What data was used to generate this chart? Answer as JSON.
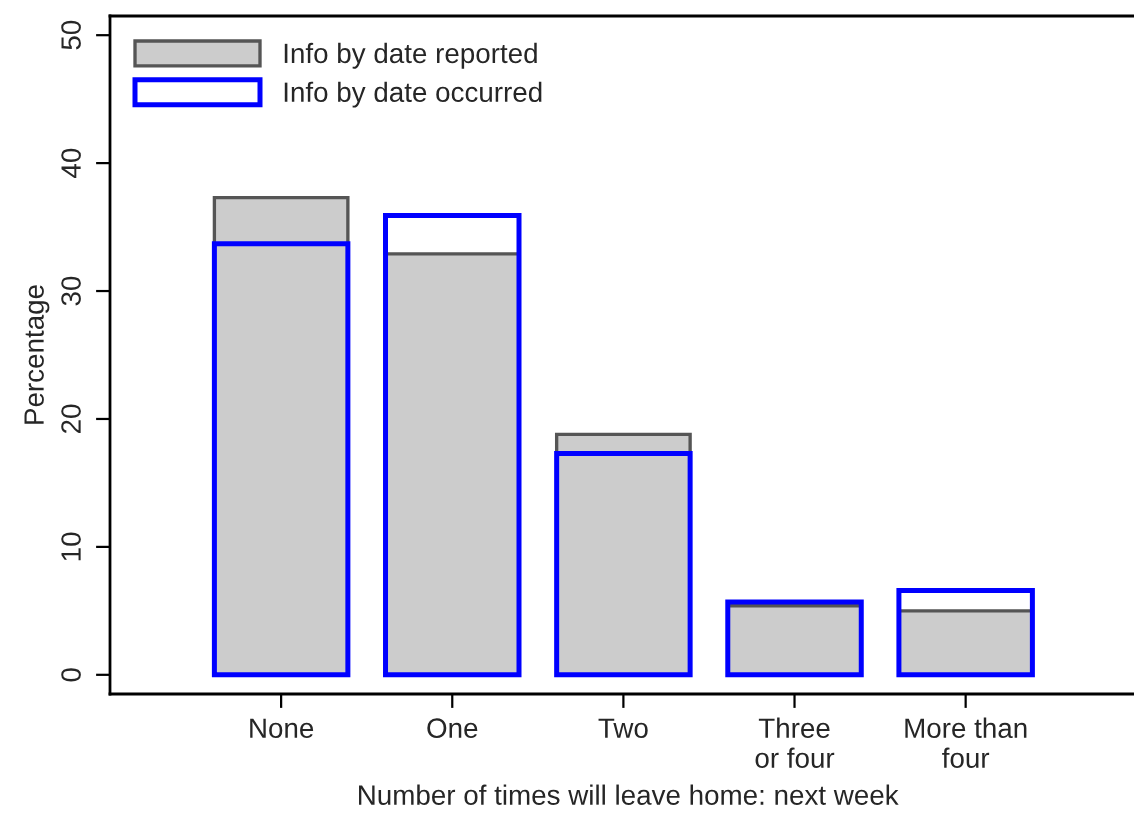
{
  "chart_data": {
    "type": "bar",
    "xlabel": "Number of times will leave home: next week",
    "ylabel": "Percentage",
    "categories": [
      "None",
      "One",
      "Two",
      "Three\nor four",
      "More than\nfour"
    ],
    "series": [
      {
        "name": "Info by date reported",
        "color": "#cccccc",
        "values": [
          37.3,
          32.9,
          18.8,
          5.4,
          5.0
        ]
      },
      {
        "name": "Info by date occurred",
        "color": "#0000ff",
        "values": [
          33.7,
          35.9,
          17.3,
          5.7,
          6.6
        ]
      }
    ],
    "ylim": [
      -1.5,
      51.5
    ],
    "yticks": [
      0,
      10,
      20,
      30,
      40,
      50
    ],
    "grid": false,
    "legend": "top left"
  }
}
